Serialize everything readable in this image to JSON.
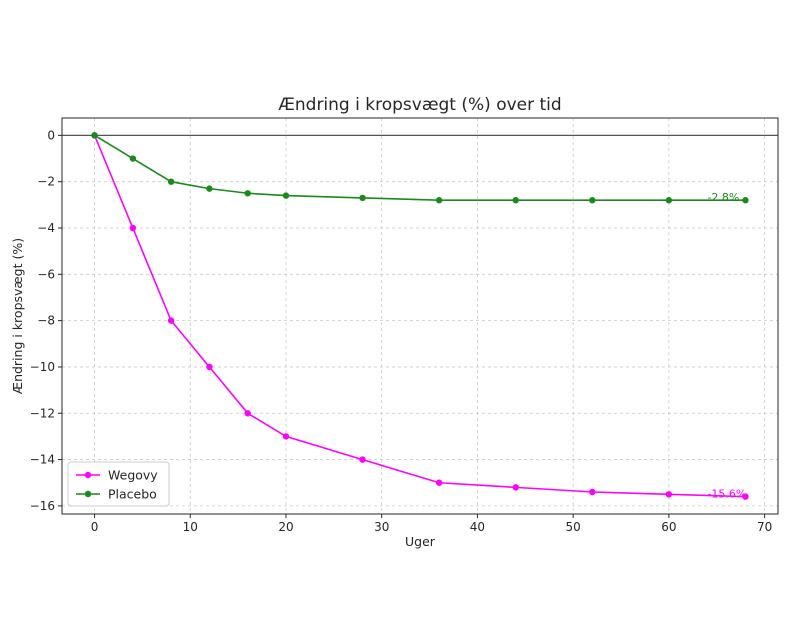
{
  "chart_data": {
    "type": "line",
    "title": "Ændring i kropsvægt (%) over tid",
    "xlabel": "Uger",
    "ylabel": "Ændring i kropsvægt (%)",
    "xlim": [
      -3.4,
      71.4
    ],
    "ylim": [
      -16.35,
      0.75
    ],
    "xticks": [
      0,
      10,
      20,
      30,
      40,
      50,
      60,
      70
    ],
    "yticks": [
      0,
      -2,
      -4,
      -6,
      -8,
      -10,
      -12,
      -14,
      -16
    ],
    "grid": true,
    "zero_line": true,
    "legend_position": "lower-left",
    "series": [
      {
        "name": "Wegovy",
        "color": "#ff00ff",
        "x": [
          0,
          4,
          8,
          12,
          16,
          20,
          28,
          36,
          44,
          52,
          60,
          68
        ],
        "y": [
          0,
          -4,
          -8,
          -10,
          -12,
          -13,
          -14,
          -15,
          -15.2,
          -15.4,
          -15.5,
          -15.6
        ],
        "end_label": "-15.6%"
      },
      {
        "name": "Placebo",
        "color": "#1a8a1a",
        "x": [
          0,
          4,
          8,
          12,
          16,
          20,
          28,
          36,
          44,
          52,
          60,
          68
        ],
        "y": [
          0,
          -1,
          -2,
          -2.3,
          -2.5,
          -2.6,
          -2.7,
          -2.8,
          -2.8,
          -2.8,
          -2.8,
          -2.8
        ],
        "end_label": "-2.8%"
      }
    ]
  }
}
